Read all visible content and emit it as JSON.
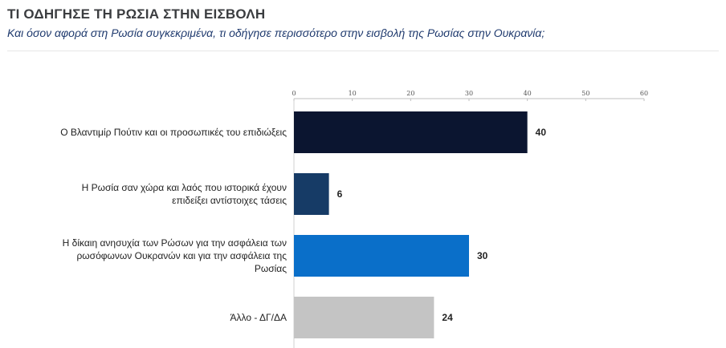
{
  "header": {
    "title": "ΤΙ ΟΔΗΓΗΣΕ ΤΗ ΡΩΣΙΑ ΣΤΗΝ ΕΙΣΒΟΛΗ",
    "subtitle": "Και όσον αφορά στη Ρωσία συγκεκριμένα, τι οδήγησε περισσότερο στην εισβολή της Ρωσίας στην Ουκρανία;"
  },
  "chart_data": {
    "type": "bar",
    "orientation": "horizontal",
    "categories": [
      [
        "Ο Βλαντιμίρ Πούτιν και οι προσωπικές του επιδιώξεις"
      ],
      [
        "Η Ρωσία σαν χώρα και λαός που ιστορικά έχουν",
        "επιδείξει αντίστοιχες τάσεις"
      ],
      [
        "Η δίκαιη ανησυχία των Ρώσων για την ασφάλεια των",
        "ρωσόφωνων Ουκρανών και για την ασφάλεια της",
        "Ρωσίας"
      ],
      [
        "Άλλο - ΔΓ/ΔΑ"
      ]
    ],
    "values": [
      40,
      6,
      30,
      24
    ],
    "data_labels": [
      "40",
      "6",
      "30",
      "24"
    ],
    "bar_colors": [
      "#0b1530",
      "#163b66",
      "#0a6fc9",
      "#c4c4c4"
    ],
    "xlim": [
      0,
      60
    ],
    "xticks": [
      "0",
      "10",
      "20",
      "30",
      "40",
      "50",
      "60"
    ],
    "axis_position": "top",
    "grid": false,
    "legend": "none"
  }
}
